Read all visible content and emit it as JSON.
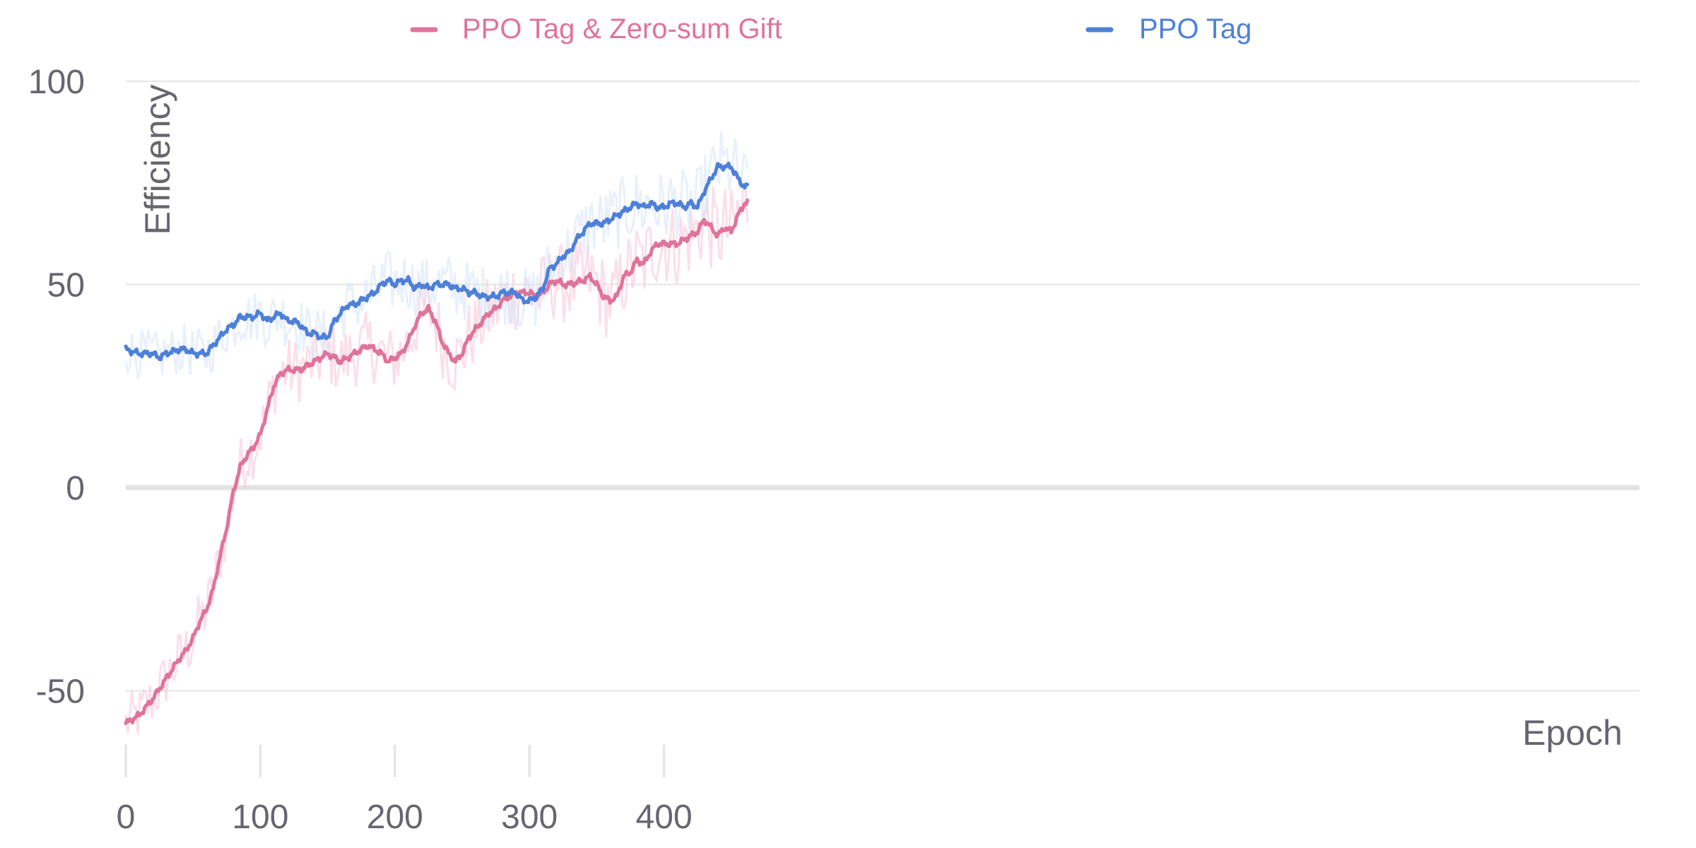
{
  "chart_data": {
    "type": "line",
    "xlabel": "Epoch",
    "ylabel": "Efficiency",
    "xlim": [
      0,
      462
    ],
    "ylim": [
      -69,
      106
    ],
    "x_ticks": [
      {
        "value": 0,
        "label": "0"
      },
      {
        "value": 100,
        "label": "100"
      },
      {
        "value": 200,
        "label": "200"
      },
      {
        "value": 300,
        "label": "300"
      },
      {
        "value": 400,
        "label": "400"
      }
    ],
    "y_ticks": [
      {
        "value": 100,
        "label": "100"
      },
      {
        "value": 50,
        "label": "50"
      },
      {
        "value": 0,
        "label": "0"
      },
      {
        "value": -50,
        "label": "-50"
      }
    ],
    "grid": true,
    "legend_position": "top",
    "series": [
      {
        "name": "PPO Tag & Zero-sum Gift",
        "color": "#e0739a",
        "raw_color": "#f7c5d5",
        "raw_noise": 7,
        "x": [
          0,
          10,
          20,
          30,
          40,
          45,
          50,
          55,
          60,
          65,
          70,
          75,
          80,
          85,
          90,
          95,
          100,
          105,
          110,
          115,
          120,
          130,
          140,
          145,
          150,
          160,
          170,
          180,
          190,
          195,
          200,
          205,
          210,
          215,
          220,
          225,
          230,
          235,
          240,
          245,
          250,
          255,
          260,
          265,
          270,
          275,
          280,
          285,
          290,
          295,
          300,
          305,
          310,
          315,
          320,
          325,
          330,
          340,
          345,
          350,
          355,
          360,
          365,
          370,
          375,
          380,
          385,
          390,
          395,
          400,
          405,
          410,
          415,
          420,
          425,
          430,
          435,
          440,
          445,
          450,
          455,
          460
        ],
        "y": [
          -58,
          -56,
          -52,
          -47,
          -42,
          -40,
          -37,
          -33,
          -30,
          -25,
          -17,
          -10,
          -1,
          5,
          8,
          10,
          13,
          19,
          25,
          28,
          29,
          29,
          31,
          32,
          33,
          31,
          33,
          35,
          33,
          31,
          32,
          33,
          36,
          40,
          43,
          44,
          41,
          36,
          33,
          31,
          33,
          37,
          39,
          41,
          43,
          44,
          46,
          47,
          48,
          48,
          48,
          47,
          48,
          50,
          51,
          50,
          50,
          51,
          52,
          50,
          47,
          46,
          47,
          52,
          53,
          56,
          55,
          58,
          60,
          60,
          60,
          60,
          61,
          62,
          63,
          66,
          64,
          62,
          64,
          63,
          67,
          70
        ]
      },
      {
        "name": "PPO Tag",
        "color": "#4d80d9",
        "raw_color": "#d5e3f7",
        "raw_noise": 6,
        "x": [
          0,
          10,
          20,
          25,
          30,
          40,
          45,
          50,
          55,
          60,
          65,
          70,
          75,
          80,
          85,
          90,
          95,
          100,
          105,
          110,
          115,
          120,
          125,
          130,
          135,
          140,
          145,
          150,
          155,
          160,
          165,
          170,
          175,
          180,
          185,
          190,
          195,
          200,
          205,
          210,
          215,
          220,
          225,
          230,
          235,
          240,
          245,
          250,
          255,
          260,
          265,
          270,
          275,
          280,
          285,
          290,
          295,
          300,
          305,
          310,
          315,
          320,
          325,
          330,
          335,
          340,
          345,
          350,
          355,
          360,
          365,
          370,
          375,
          380,
          385,
          390,
          395,
          400,
          405,
          410,
          415,
          420,
          425,
          430,
          435,
          440,
          445,
          450,
          455,
          460
        ],
        "y": [
          34,
          33,
          33,
          32,
          33,
          34,
          34,
          33,
          33,
          33,
          35,
          37,
          39,
          40,
          42,
          42,
          42,
          43,
          41,
          42,
          43,
          41,
          41,
          40,
          38,
          38,
          37,
          37,
          41,
          43,
          45,
          45,
          46,
          47,
          48,
          50,
          51,
          50,
          51,
          51,
          49,
          50,
          49,
          50,
          50,
          50,
          49,
          49,
          48,
          48,
          47,
          47,
          47,
          48,
          48,
          48,
          46,
          46,
          47,
          49,
          54,
          55,
          57,
          58,
          61,
          63,
          65,
          65,
          65,
          66,
          67,
          68,
          69,
          70,
          69,
          70,
          69,
          69,
          70,
          70,
          69,
          70,
          69,
          73,
          76,
          79,
          79,
          79,
          76,
          74
        ]
      }
    ]
  }
}
